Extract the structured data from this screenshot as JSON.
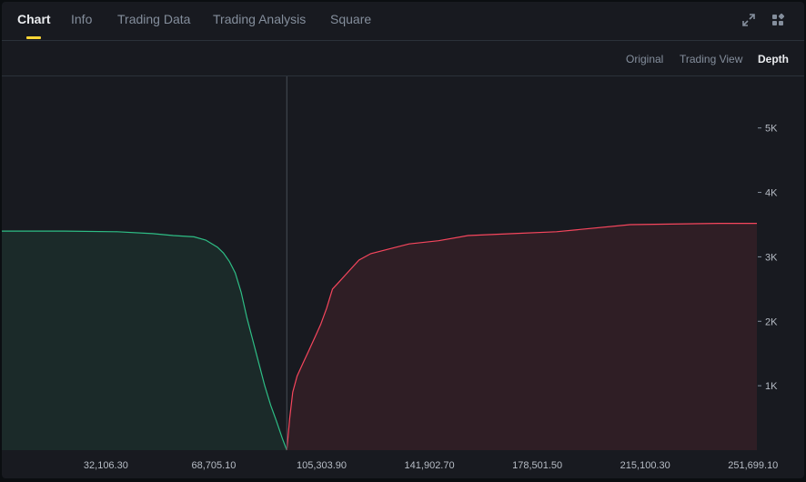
{
  "tabs": [
    {
      "label": "Chart",
      "active": true
    },
    {
      "label": "Info",
      "active": false
    },
    {
      "label": "Trading Data",
      "active": false
    },
    {
      "label": "Trading Analysis",
      "active": false
    },
    {
      "label": "Square",
      "active": false
    }
  ],
  "toolbar_icons": [
    "expand-icon",
    "layout-grid-icon"
  ],
  "views": [
    {
      "label": "Original",
      "active": false
    },
    {
      "label": "Trading View",
      "active": false
    },
    {
      "label": "Depth",
      "active": true
    }
  ],
  "colors": {
    "bid_line": "#2ebd85",
    "bid_fill": "#1b2a29",
    "ask_line": "#f6465d",
    "ask_fill": "#2f1e25",
    "accent": "#fcd535"
  },
  "chart_data": {
    "type": "area",
    "title": "",
    "xlabel": "",
    "ylabel": "",
    "xlim": [
      -3200,
      253000
    ],
    "ylim": [
      0,
      5800
    ],
    "mid_price": 93500,
    "x_ticks": [
      "32,106.30",
      "68,705.10",
      "105,303.90",
      "141,902.70",
      "178,501.50",
      "215,100.30",
      "251,699.10"
    ],
    "x_tick_values": [
      32106.3,
      68705.1,
      105303.9,
      141902.7,
      178501.5,
      215100.3,
      251699.1
    ],
    "y_ticks": [
      "1K",
      "2K",
      "3K",
      "4K",
      "5K"
    ],
    "y_tick_values": [
      1000,
      2000,
      3000,
      4000,
      5000
    ],
    "series": [
      {
        "side": "bid",
        "x": [
          -3200,
          18000,
          36000,
          48000,
          55000,
          62000,
          66000,
          70000,
          72000,
          74000,
          76000,
          78000,
          80000,
          82000,
          84000,
          86000,
          88000,
          90000,
          92000,
          93500
        ],
        "y": [
          3400,
          3400,
          3390,
          3360,
          3330,
          3310,
          3260,
          3150,
          3060,
          2930,
          2750,
          2450,
          2050,
          1700,
          1350,
          1000,
          700,
          450,
          180,
          0
        ]
      },
      {
        "side": "ask",
        "x": [
          93500,
          94500,
          95500,
          97000,
          99000,
          101000,
          103000,
          105000,
          107000,
          109000,
          111000,
          114000,
          118000,
          122000,
          128000,
          135000,
          145000,
          155000,
          170000,
          185000,
          210000,
          240000,
          253000
        ],
        "y": [
          0,
          500,
          900,
          1150,
          1350,
          1550,
          1750,
          1950,
          2200,
          2500,
          2600,
          2750,
          2950,
          3050,
          3120,
          3200,
          3250,
          3330,
          3360,
          3390,
          3500,
          3520,
          3520
        ]
      }
    ]
  }
}
